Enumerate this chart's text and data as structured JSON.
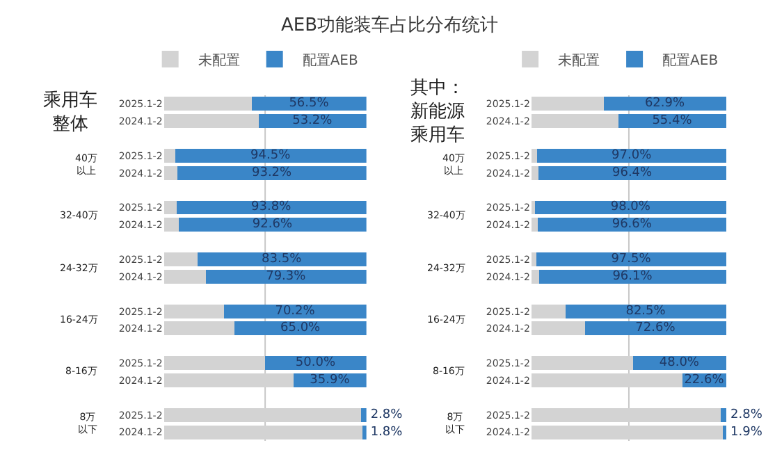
{
  "chart_data": [
    {
      "type": "bar",
      "orientation": "horizontal",
      "stacked": true,
      "title": "AEB功能装车占比分布统计",
      "legend": "top right",
      "tick_labels": "y",
      "xlim": [
        0,
        100
      ],
      "ref_lines": [
        {
          "axis": "x",
          "value": 50,
          "color": "#c8c8c8"
        }
      ],
      "categories": [
        "2025.1-2",
        "2024.1-2",
        null,
        "2025.1-2",
        "2024.1-2",
        null,
        "2025.1-2",
        "2024.1-2",
        null,
        "2025.1-2",
        "2024.1-2",
        null,
        "2025.1-2",
        "2024.1-2",
        null,
        "2025.1-2",
        "2024.1-2",
        null,
        "2025.1-2",
        "2024.1-2"
      ],
      "annotations": [
        "乘用车整体",
        "40万以上",
        "32-40万",
        "24-32万",
        "16-24万",
        "8-16万",
        "8万以下"
      ],
      "series": [
        {
          "name": "未配置",
          "color": "#d3d3d3",
          "values": [
            43.5,
            46.8,
            null,
            5.5,
            6.8,
            null,
            6.2,
            7.4,
            null,
            16.5,
            20.7,
            null,
            29.8,
            35.0,
            null,
            50.0,
            64.1,
            null,
            97.2,
            98.2
          ]
        },
        {
          "name": "配置AEB",
          "color": "#3a86c8",
          "values": [
            56.5,
            53.2,
            null,
            94.5,
            93.2,
            null,
            93.8,
            92.6,
            null,
            83.5,
            79.3,
            null,
            70.2,
            65.0,
            null,
            50.0,
            35.9,
            null,
            2.8,
            1.8
          ],
          "value_labels": [
            "56.5%",
            "53.2%",
            null,
            "94.5%",
            "93.2%",
            null,
            "93.8%",
            "92.6%",
            null,
            "83.5%",
            "79.3%",
            null,
            "70.2%",
            "65.0%",
            null,
            "50.0%",
            "35.9%",
            null,
            "2.8%",
            "1.8%"
          ]
        }
      ]
    },
    {
      "type": "bar",
      "orientation": "horizontal",
      "stacked": true,
      "legend": "top right",
      "tick_labels": "y",
      "xlim": [
        0,
        100
      ],
      "ref_lines": [
        {
          "axis": "x",
          "value": 50,
          "color": "#c8c8c8"
        }
      ],
      "categories": [
        "2025.1-2",
        "2024.1-2",
        null,
        "2025.1-2",
        "2024.1-2",
        null,
        "2025.1-2",
        "2024.1-2",
        null,
        "2025.1-2",
        "2024.1-2",
        null,
        "2025.1-2",
        "2024.1-2",
        null,
        "2025.1-2",
        "2024.1-2",
        null,
        "2025.1-2",
        "2024.1-2"
      ],
      "annotations": [
        "其中：新能源乘用车",
        "40万以上",
        "32-40万",
        "24-32万",
        "16-24万",
        "8-16万",
        "8万以下"
      ],
      "series": [
        {
          "name": "未配置",
          "color": "#d3d3d3",
          "values": [
            37.1,
            44.6,
            null,
            3.0,
            3.6,
            null,
            2.0,
            3.4,
            null,
            2.5,
            3.9,
            null,
            17.5,
            27.4,
            null,
            52.0,
            77.4,
            null,
            97.2,
            98.1
          ]
        },
        {
          "name": "配置AEB",
          "color": "#3a86c8",
          "values": [
            62.9,
            55.4,
            null,
            97.0,
            96.4,
            null,
            98.0,
            96.6,
            null,
            97.5,
            96.1,
            null,
            82.5,
            72.6,
            null,
            48.0,
            22.6,
            null,
            2.8,
            1.9
          ],
          "value_labels": [
            "62.9%",
            "55.4%",
            null,
            "97.0%",
            "96.4%",
            null,
            "98.0%",
            "96.6%",
            null,
            "97.5%",
            "96.1%",
            null,
            "82.5%",
            "72.6%",
            null,
            "48.0%",
            "22.6%",
            null,
            "2.8%",
            "1.9%"
          ]
        }
      ]
    }
  ]
}
